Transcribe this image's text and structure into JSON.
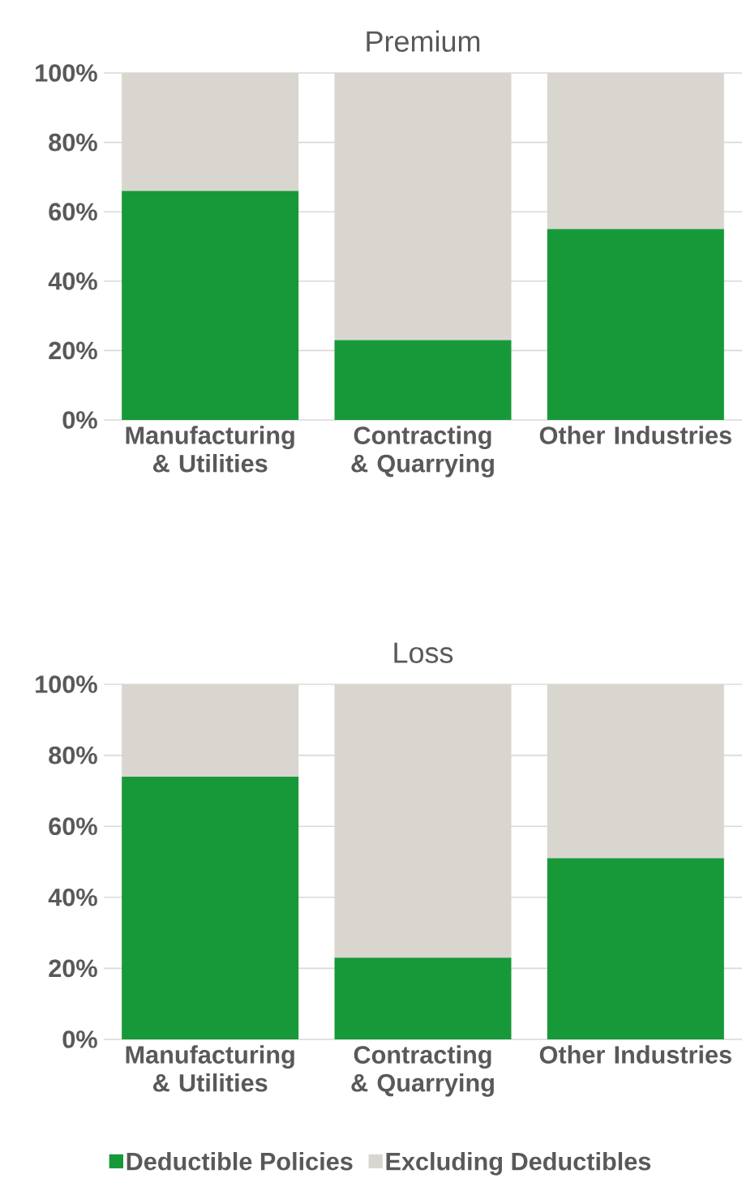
{
  "chart_data": [
    {
      "type": "bar",
      "title": "Premium",
      "stacked": true,
      "categories": [
        "Manufacturing & Utilities",
        "Contracting & Quarrying",
        "Other Industries"
      ],
      "series": [
        {
          "color": "#17993a",
          "values": [
            66,
            23,
            55
          ]
        },
        {
          "color": "#d9d6d0",
          "values": [
            34,
            77,
            45
          ]
        }
      ],
      "ylim": [
        0,
        100
      ],
      "yticks": [
        {
          "value": 0,
          "label": "0%"
        },
        {
          "value": 20,
          "label": "20%"
        },
        {
          "value": 40,
          "label": "40%"
        },
        {
          "value": 60,
          "label": "60%"
        },
        {
          "value": 80,
          "label": "80%"
        },
        {
          "value": 100,
          "label": "100%"
        }
      ],
      "grid": "y"
    },
    {
      "type": "bar",
      "title": "Loss",
      "stacked": true,
      "categories": [
        "Manufacturing & Utilities",
        "Contracting & Quarrying",
        "Other Industries"
      ],
      "series": [
        {
          "name": "Deductible Policies",
          "color": "#17993a",
          "values": [
            74,
            23,
            51
          ]
        },
        {
          "name": "Excluding Deductibles",
          "color": "#d9d6d0",
          "values": [
            26,
            77,
            49
          ]
        }
      ],
      "ylim": [
        0,
        100
      ],
      "yticks": [
        {
          "value": 0,
          "label": "0%"
        },
        {
          "value": 20,
          "label": "20%"
        },
        {
          "value": 40,
          "label": "40%"
        },
        {
          "value": 60,
          "label": "60%"
        },
        {
          "value": 80,
          "label": "80%"
        },
        {
          "value": 100,
          "label": "100%"
        }
      ],
      "grid": "y",
      "legend": "bottom"
    }
  ]
}
